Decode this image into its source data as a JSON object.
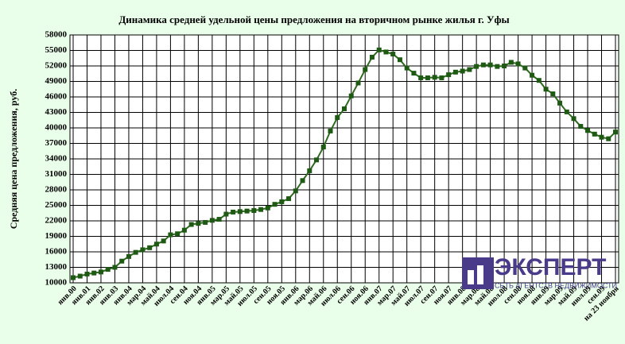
{
  "chart_data": {
    "type": "line",
    "title": "Динамика средней удельной цены предложения на вторичном рынке жилья г. Уфы",
    "y_label": "Средняя цена предложения, руб.",
    "logo": {
      "name": "ЭКСПЕРТ",
      "tagline": "СЕТЬ АГЕНТСТВ НЕДВИЖИМОСТИ"
    },
    "categories": [
      "янв.00",
      null,
      "янв.01",
      null,
      "янв.02",
      null,
      "янв.03",
      null,
      "янв.04",
      null,
      "мар.04",
      null,
      "май.04",
      null,
      "июл.04",
      null,
      "сен.04",
      null,
      "ноя.04",
      null,
      "янв.05",
      null,
      "мар.05",
      null,
      "май.05",
      null,
      "июл.05",
      null,
      "сен.05",
      null,
      "ноя.05",
      null,
      "янв.06",
      null,
      "мар.06",
      null,
      "май.06",
      null,
      "июл.06",
      null,
      "сен.06",
      null,
      "ноя.06",
      null,
      "янв.07",
      null,
      "мар.07",
      null,
      "май.07",
      null,
      "июл.07",
      null,
      "сен.07",
      null,
      "ноя.07",
      null,
      "янв.08",
      null,
      "мар.08",
      null,
      "май.08",
      null,
      "июл.08",
      null,
      "сен.08",
      null,
      "ноя.08",
      null,
      "янв.09",
      null,
      "мар.09",
      null,
      "май.09",
      null,
      "июл.09",
      null,
      "сен.09",
      null,
      "на 23 ноября"
    ],
    "series": [
      {
        "name": "Средняя цена",
        "color": "#2e6b1e",
        "marker_color": "#1e5a14",
        "values": [
          11000,
          11300,
          11700,
          11900,
          12100,
          12600,
          13000,
          14200,
          15100,
          15900,
          16400,
          16800,
          17500,
          18100,
          19300,
          19500,
          20200,
          21300,
          21500,
          21700,
          22100,
          22300,
          23300,
          23700,
          23800,
          23900,
          24000,
          24200,
          24500,
          25200,
          25700,
          26300,
          27800,
          29800,
          31700,
          33800,
          36300,
          39400,
          42000,
          43700,
          46200,
          48700,
          51300,
          53700,
          55100,
          54700,
          54300,
          53200,
          51600,
          50600,
          49700,
          49700,
          49800,
          49700,
          50300,
          50800,
          51000,
          51300,
          51900,
          52200,
          52200,
          51900,
          52000,
          52700,
          52400,
          51600,
          50200,
          49200,
          47500,
          46600,
          44800,
          43100,
          41800,
          40300,
          39500,
          38800,
          38200,
          37900,
          39200
        ]
      }
    ],
    "ylim": [
      10000,
      58000
    ],
    "yticks": [
      10000,
      13000,
      16000,
      19000,
      22000,
      25000,
      28000,
      31000,
      34000,
      37000,
      40000,
      43000,
      46000,
      49000,
      52000,
      55000,
      58000
    ],
    "grid": true
  }
}
